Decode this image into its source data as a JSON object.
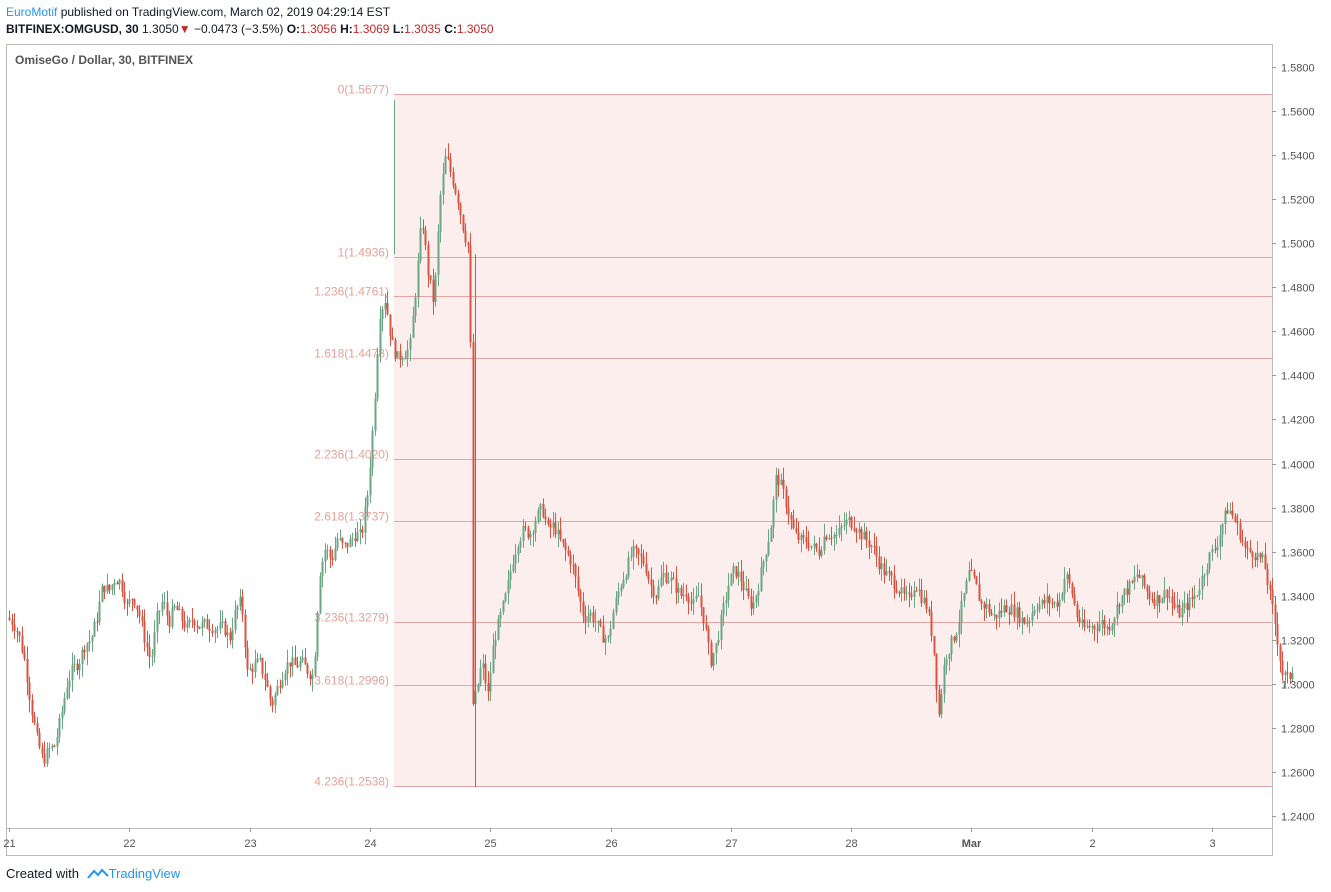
{
  "header": {
    "author": "EuroMotif",
    "published": "published on TradingView.com, March 02, 2019 04:29:14 EST",
    "symbol": "BITFINEX:OMGUSD, 30",
    "last": "1.3050",
    "change": "−0.0473 (−3.5%)",
    "o_label": "O:",
    "o": "1.3056",
    "h_label": "H:",
    "h": "1.3069",
    "l_label": "L:",
    "l": "1.3035",
    "c_label": "C:",
    "c": "1.3050"
  },
  "legend": "OmiseGo / Dollar, 30, BITFINEX",
  "footer": {
    "created": "Created with",
    "brand": "TradingView"
  },
  "colors": {
    "up": "#6ba583",
    "down": "#d75442",
    "fib_line": "#e5a3a3",
    "fib_fill": "#fdeeee",
    "fib_text": "#e6a19a",
    "axis": "#555555"
  },
  "chart_data": {
    "type": "candlestick",
    "ylim": [
      1.235,
      1.59
    ],
    "y_ticks": [
      "1.5800",
      "1.5600",
      "1.5400",
      "1.5200",
      "1.5000",
      "1.4800",
      "1.4600",
      "1.4400",
      "1.4200",
      "1.4000",
      "1.3800",
      "1.3600",
      "1.3400",
      "1.3200",
      "1.3000",
      "1.2800",
      "1.2600",
      "1.2400"
    ],
    "x_ticks": [
      {
        "label": "21",
        "t": 0
      },
      {
        "label": "22",
        "t": 1
      },
      {
        "label": "23",
        "t": 2
      },
      {
        "label": "24",
        "t": 3
      },
      {
        "label": "25",
        "t": 4
      },
      {
        "label": "26",
        "t": 5
      },
      {
        "label": "27",
        "t": 6
      },
      {
        "label": "28",
        "t": 7
      },
      {
        "label": "Mar",
        "t": 8,
        "bold": true
      },
      {
        "label": "2",
        "t": 9
      },
      {
        "label": "3",
        "t": 10
      }
    ],
    "fib_levels": [
      {
        "label": "0(1.5677)",
        "value": 1.5677
      },
      {
        "label": "1(1.4936)",
        "value": 1.4936
      },
      {
        "label": "1.236(1.4761)",
        "value": 1.4761
      },
      {
        "label": "1.618(1.4478)",
        "value": 1.4478
      },
      {
        "label": "2.236(1.4020)",
        "value": 1.402
      },
      {
        "label": "2.618(1.3737)",
        "value": 1.3737
      },
      {
        "label": "3.236(1.3279)",
        "value": 1.3279
      },
      {
        "label": "3.618(1.2996)",
        "value": 1.2996
      },
      {
        "label": "4.236(1.2538)",
        "value": 1.2538
      }
    ],
    "fib_start_t": 3.2,
    "path": [
      [
        0.0,
        1.33
      ],
      [
        0.05,
        1.328
      ],
      [
        0.1,
        1.322
      ],
      [
        0.15,
        1.31
      ],
      [
        0.2,
        1.29
      ],
      [
        0.25,
        1.275
      ],
      [
        0.3,
        1.265
      ],
      [
        0.35,
        1.27
      ],
      [
        0.4,
        1.272
      ],
      [
        0.45,
        1.285
      ],
      [
        0.5,
        1.3
      ],
      [
        0.55,
        1.307
      ],
      [
        0.6,
        1.31
      ],
      [
        0.65,
        1.318
      ],
      [
        0.7,
        1.32
      ],
      [
        0.75,
        1.33
      ],
      [
        0.8,
        1.345
      ],
      [
        0.85,
        1.342
      ],
      [
        0.9,
        1.348
      ],
      [
        0.95,
        1.346
      ],
      [
        1.0,
        1.335
      ],
      [
        1.05,
        1.34
      ],
      [
        1.1,
        1.332
      ],
      [
        1.15,
        1.32
      ],
      [
        1.2,
        1.31
      ],
      [
        1.25,
        1.33
      ],
      [
        1.3,
        1.338
      ],
      [
        1.35,
        1.328
      ],
      [
        1.4,
        1.335
      ],
      [
        1.45,
        1.33
      ],
      [
        1.5,
        1.325
      ],
      [
        1.55,
        1.33
      ],
      [
        1.6,
        1.326
      ],
      [
        1.65,
        1.327
      ],
      [
        1.7,
        1.326
      ],
      [
        1.75,
        1.325
      ],
      [
        1.8,
        1.326
      ],
      [
        1.85,
        1.32
      ],
      [
        1.9,
        1.333
      ],
      [
        1.95,
        1.338
      ],
      [
        2.0,
        1.305
      ],
      [
        2.05,
        1.308
      ],
      [
        2.1,
        1.31
      ],
      [
        2.15,
        1.302
      ],
      [
        2.2,
        1.29
      ],
      [
        2.25,
        1.298
      ],
      [
        2.3,
        1.306
      ],
      [
        2.35,
        1.31
      ],
      [
        2.4,
        1.308
      ],
      [
        2.45,
        1.31
      ],
      [
        2.5,
        1.306
      ],
      [
        2.55,
        1.303
      ],
      [
        2.6,
        1.35
      ],
      [
        2.65,
        1.362
      ],
      [
        2.7,
        1.356
      ],
      [
        2.75,
        1.366
      ],
      [
        2.8,
        1.362
      ],
      [
        2.85,
        1.364
      ],
      [
        2.9,
        1.368
      ],
      [
        2.95,
        1.367
      ],
      [
        3.0,
        1.386
      ],
      [
        3.05,
        1.42
      ],
      [
        3.1,
        1.468
      ],
      [
        3.15,
        1.475
      ],
      [
        3.2,
        1.455
      ],
      [
        3.25,
        1.448
      ],
      [
        3.3,
        1.45
      ],
      [
        3.35,
        1.452
      ],
      [
        3.4,
        1.48
      ],
      [
        3.45,
        1.512
      ],
      [
        3.5,
        1.487
      ],
      [
        3.55,
        1.472
      ],
      [
        3.6,
        1.52
      ],
      [
        3.65,
        1.54
      ],
      [
        3.7,
        1.53
      ],
      [
        3.75,
        1.52
      ],
      [
        3.8,
        1.505
      ],
      [
        3.85,
        1.496
      ],
      [
        3.87,
        1.29
      ],
      [
        3.9,
        1.295
      ],
      [
        3.95,
        1.31
      ],
      [
        4.0,
        1.295
      ],
      [
        4.05,
        1.32
      ],
      [
        4.1,
        1.33
      ],
      [
        4.15,
        1.34
      ],
      [
        4.2,
        1.355
      ],
      [
        4.25,
        1.365
      ],
      [
        4.3,
        1.37
      ],
      [
        4.35,
        1.368
      ],
      [
        4.4,
        1.375
      ],
      [
        4.45,
        1.38
      ],
      [
        4.5,
        1.37
      ],
      [
        4.55,
        1.372
      ],
      [
        4.6,
        1.365
      ],
      [
        4.65,
        1.36
      ],
      [
        4.7,
        1.355
      ],
      [
        4.75,
        1.342
      ],
      [
        4.8,
        1.33
      ],
      [
        4.85,
        1.332
      ],
      [
        4.9,
        1.328
      ],
      [
        4.95,
        1.322
      ],
      [
        5.0,
        1.32
      ],
      [
        5.05,
        1.335
      ],
      [
        5.1,
        1.345
      ],
      [
        5.15,
        1.352
      ],
      [
        5.2,
        1.36
      ],
      [
        5.25,
        1.358
      ],
      [
        5.3,
        1.355
      ],
      [
        5.35,
        1.345
      ],
      [
        5.4,
        1.34
      ],
      [
        5.45,
        1.35
      ],
      [
        5.5,
        1.348
      ],
      [
        5.55,
        1.345
      ],
      [
        5.6,
        1.34
      ],
      [
        5.65,
        1.342
      ],
      [
        5.7,
        1.335
      ],
      [
        5.75,
        1.34
      ],
      [
        5.8,
        1.328
      ],
      [
        5.85,
        1.31
      ],
      [
        5.9,
        1.318
      ],
      [
        5.95,
        1.332
      ],
      [
        6.0,
        1.345
      ],
      [
        6.05,
        1.352
      ],
      [
        6.1,
        1.348
      ],
      [
        6.15,
        1.34
      ],
      [
        6.2,
        1.335
      ],
      [
        6.25,
        1.345
      ],
      [
        6.3,
        1.358
      ],
      [
        6.35,
        1.37
      ],
      [
        6.4,
        1.395
      ],
      [
        6.45,
        1.388
      ],
      [
        6.5,
        1.378
      ],
      [
        6.55,
        1.368
      ],
      [
        6.6,
        1.365
      ],
      [
        6.65,
        1.365
      ],
      [
        6.7,
        1.362
      ],
      [
        6.75,
        1.36
      ],
      [
        6.8,
        1.368
      ],
      [
        6.85,
        1.368
      ],
      [
        6.9,
        1.367
      ],
      [
        6.95,
        1.372
      ],
      [
        7.0,
        1.374
      ],
      [
        7.05,
        1.372
      ],
      [
        7.1,
        1.368
      ],
      [
        7.15,
        1.365
      ],
      [
        7.2,
        1.362
      ],
      [
        7.25,
        1.355
      ],
      [
        7.3,
        1.35
      ],
      [
        7.35,
        1.348
      ],
      [
        7.4,
        1.344
      ],
      [
        7.45,
        1.34
      ],
      [
        7.5,
        1.338
      ],
      [
        7.55,
        1.346
      ],
      [
        7.6,
        1.34
      ],
      [
        7.65,
        1.335
      ],
      [
        7.7,
        1.32
      ],
      [
        7.75,
        1.286
      ],
      [
        7.8,
        1.312
      ],
      [
        7.85,
        1.318
      ],
      [
        7.9,
        1.325
      ],
      [
        7.95,
        1.338
      ],
      [
        8.0,
        1.35
      ],
      [
        8.05,
        1.346
      ],
      [
        8.1,
        1.336
      ],
      [
        8.15,
        1.335
      ],
      [
        8.2,
        1.33
      ],
      [
        8.25,
        1.332
      ],
      [
        8.3,
        1.335
      ],
      [
        8.35,
        1.334
      ],
      [
        8.4,
        1.332
      ],
      [
        8.45,
        1.328
      ],
      [
        8.5,
        1.33
      ],
      [
        8.55,
        1.336
      ],
      [
        8.6,
        1.336
      ],
      [
        8.65,
        1.338
      ],
      [
        8.7,
        1.336
      ],
      [
        8.75,
        1.338
      ],
      [
        8.8,
        1.35
      ],
      [
        8.85,
        1.342
      ],
      [
        8.9,
        1.33
      ],
      [
        8.95,
        1.325
      ],
      [
        9.0,
        1.326
      ],
      [
        9.05,
        1.326
      ],
      [
        9.1,
        1.328
      ],
      [
        9.15,
        1.325
      ],
      [
        9.2,
        1.33
      ],
      [
        9.25,
        1.338
      ],
      [
        9.3,
        1.342
      ],
      [
        9.35,
        1.345
      ],
      [
        9.4,
        1.35
      ],
      [
        9.45,
        1.345
      ],
      [
        9.5,
        1.34
      ],
      [
        9.55,
        1.338
      ],
      [
        9.6,
        1.34
      ],
      [
        9.65,
        1.342
      ],
      [
        9.7,
        1.335
      ],
      [
        9.75,
        1.332
      ],
      [
        9.8,
        1.335
      ],
      [
        9.85,
        1.338
      ],
      [
        9.9,
        1.342
      ],
      [
        9.95,
        1.35
      ],
      [
        10.0,
        1.358
      ],
      [
        10.05,
        1.362
      ],
      [
        10.1,
        1.372
      ],
      [
        10.15,
        1.38
      ],
      [
        10.2,
        1.375
      ],
      [
        10.25,
        1.368
      ],
      [
        10.3,
        1.36
      ],
      [
        10.35,
        1.36
      ],
      [
        10.4,
        1.358
      ],
      [
        10.45,
        1.355
      ],
      [
        10.5,
        1.34
      ],
      [
        10.55,
        1.325
      ],
      [
        10.6,
        1.305
      ],
      [
        10.65,
        1.302
      ],
      [
        10.68,
        1.305
      ]
    ]
  }
}
